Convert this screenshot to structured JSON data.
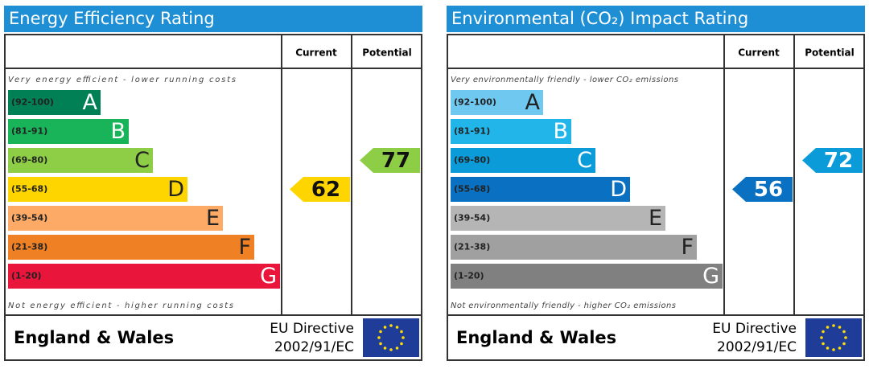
{
  "panels": [
    {
      "title": "Energy Efficiency Rating",
      "current_label": "Current",
      "potential_label": "Potential",
      "top_note": "Very energy efficient - lower running costs",
      "bottom_note": "Not energy efficient - higher running costs",
      "bands": [
        {
          "range": "(92-100)",
          "letter": "A",
          "color": "#008054"
        },
        {
          "range": "(81-91)",
          "letter": "B",
          "color": "#19b459"
        },
        {
          "range": "(69-80)",
          "letter": "C",
          "color": "#8dce46"
        },
        {
          "range": "(55-68)",
          "letter": "D",
          "color": "#ffd500"
        },
        {
          "range": "(39-54)",
          "letter": "E",
          "color": "#fcaa65"
        },
        {
          "range": "(21-38)",
          "letter": "F",
          "color": "#ef8023"
        },
        {
          "range": "(1-20)",
          "letter": "G",
          "color": "#e9153b"
        }
      ],
      "current": 62,
      "potential": 77,
      "region": "England & Wales",
      "directive": "EU Directive",
      "directive_code": "2002/91/EC"
    },
    {
      "title": "Environmental (CO₂) Impact Rating",
      "current_label": "Current",
      "potential_label": "Potential",
      "top_note": "Very environmentally friendly - lower CO₂ emissions",
      "bottom_note": "Not environmentally friendly - higher CO₂ emissions",
      "bands": [
        {
          "range": "(92-100)",
          "letter": "A",
          "color": "#6ec8f0"
        },
        {
          "range": "(81-91)",
          "letter": "B",
          "color": "#22b5e9"
        },
        {
          "range": "(69-80)",
          "letter": "C",
          "color": "#0b9bd9"
        },
        {
          "range": "(55-68)",
          "letter": "D",
          "color": "#0a70c1"
        },
        {
          "range": "(39-54)",
          "letter": "E",
          "color": "#b5b5b5"
        },
        {
          "range": "(21-38)",
          "letter": "F",
          "color": "#a0a0a0"
        },
        {
          "range": "(1-20)",
          "letter": "G",
          "color": "#808080"
        }
      ],
      "current": 56,
      "potential": 72,
      "region": "England & Wales",
      "directive": "EU Directive",
      "directive_code": "2002/91/EC"
    }
  ]
}
